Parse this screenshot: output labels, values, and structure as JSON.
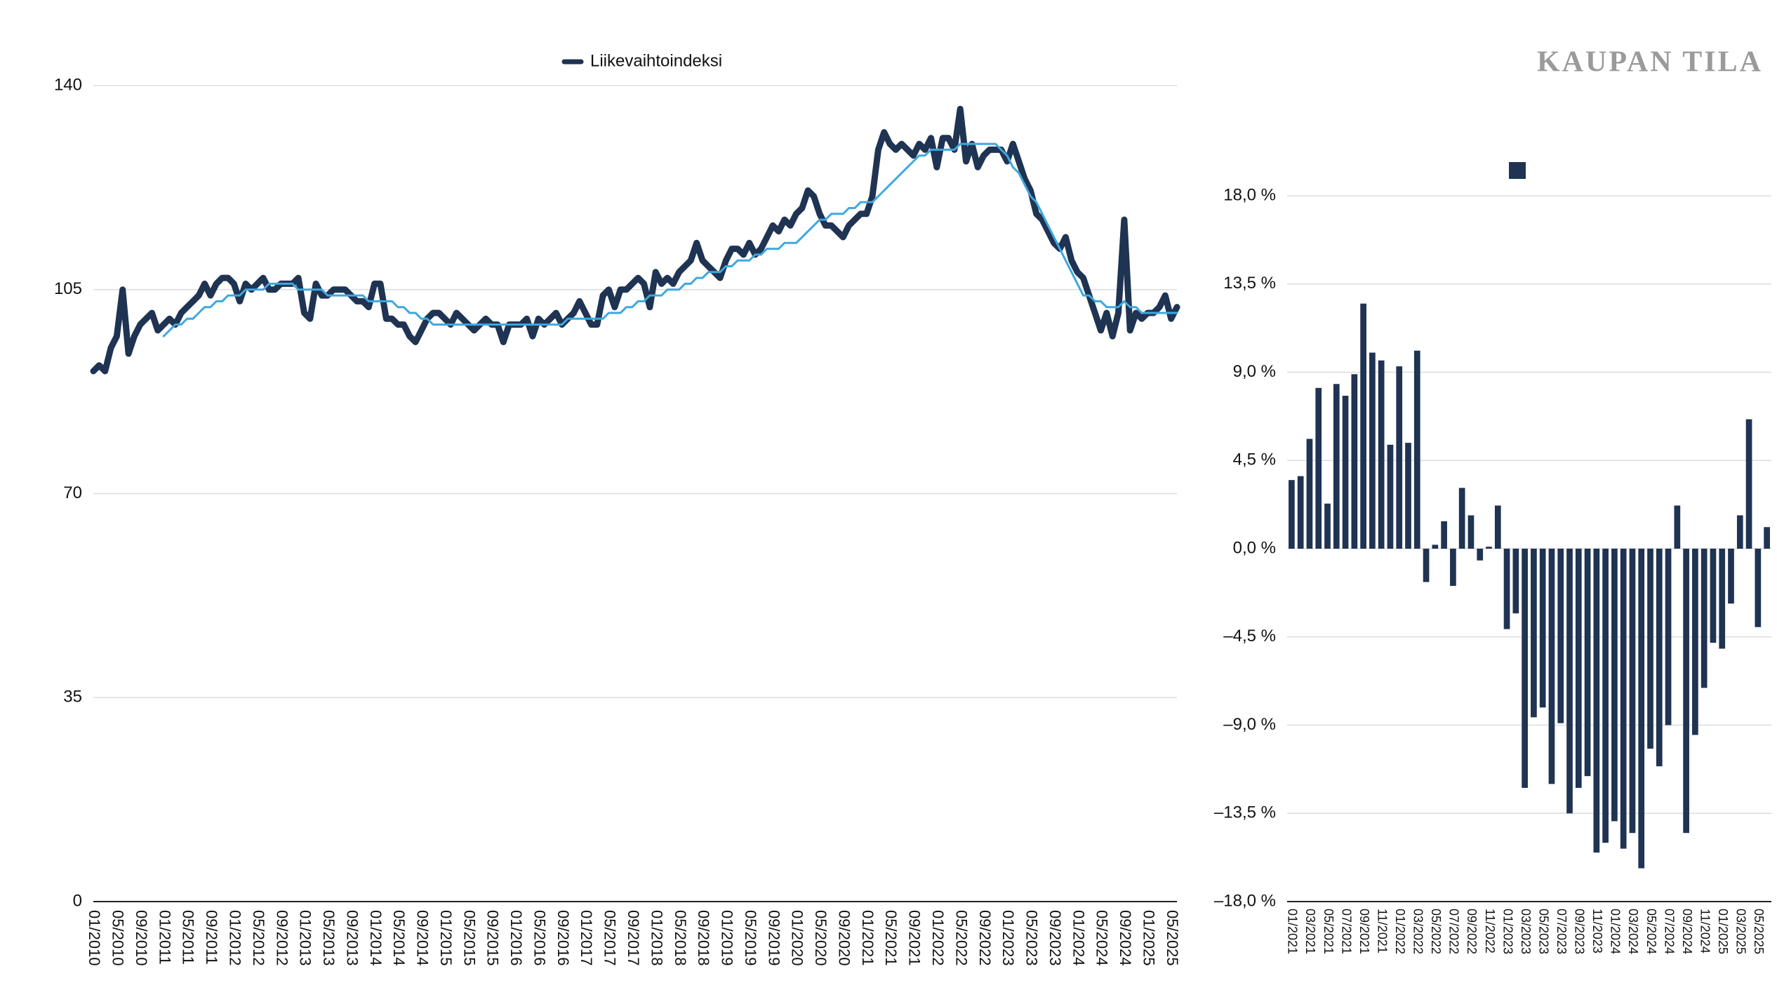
{
  "brand": "KAUPAN TILA",
  "chart_data": [
    {
      "type": "line",
      "categories": [
        "01/2010",
        null,
        null,
        null,
        "05/2010",
        null,
        null,
        null,
        "09/2010",
        null,
        null,
        null,
        "01/2011",
        null,
        null,
        null,
        "05/2011",
        null,
        null,
        null,
        "09/2011",
        null,
        null,
        null,
        "01/2012",
        null,
        null,
        null,
        "05/2012",
        null,
        null,
        null,
        "09/2012",
        null,
        null,
        null,
        "01/2013",
        null,
        null,
        null,
        "05/2013",
        null,
        null,
        null,
        "09/2013",
        null,
        null,
        null,
        "01/2014",
        null,
        null,
        null,
        "05/2014",
        null,
        null,
        null,
        "09/2014",
        null,
        null,
        null,
        "01/2015",
        null,
        null,
        null,
        "05/2015",
        null,
        null,
        null,
        "09/2015",
        null,
        null,
        null,
        "01/2016",
        null,
        null,
        null,
        "05/2016",
        null,
        null,
        null,
        "09/2016",
        null,
        null,
        null,
        "01/2017",
        null,
        null,
        null,
        "05/2017",
        null,
        null,
        null,
        "09/2017",
        null,
        null,
        null,
        "01/2018",
        null,
        null,
        null,
        "05/2018",
        null,
        null,
        null,
        "09/2018",
        null,
        null,
        null,
        "01/2019",
        null,
        null,
        null,
        "05/2019",
        null,
        null,
        null,
        "09/2019",
        null,
        null,
        null,
        "01/2020",
        null,
        null,
        null,
        "05/2020",
        null,
        null,
        null,
        "09/2020",
        null,
        null,
        null,
        "01/2021",
        null,
        null,
        null,
        "05/2021",
        null,
        null,
        null,
        "09/2021",
        null,
        null,
        null,
        "01/2022",
        null,
        null,
        null,
        "05/2022",
        null,
        null,
        null,
        "09/2022",
        null,
        null,
        null,
        "01/2023",
        null,
        null,
        null,
        "05/2023",
        null,
        null,
        null,
        "09/2023",
        null,
        null,
        null,
        "01/2024",
        null,
        null,
        null,
        "05/2024",
        null,
        null,
        null,
        "09/2024",
        null,
        null,
        null,
        "01/2025",
        null,
        null,
        null,
        "05/2025",
        null
      ],
      "series": [
        {
          "name": "Liikevaihtoindeksi",
          "color": "#1f3352",
          "values": [
            91,
            92,
            91,
            95,
            97,
            105,
            94,
            97,
            99,
            100,
            101,
            98,
            99,
            100,
            99,
            101,
            102,
            103,
            104,
            106,
            104,
            106,
            107,
            107,
            106,
            103,
            106,
            105,
            106,
            107,
            105,
            105,
            106,
            106,
            106,
            107,
            101,
            100,
            106,
            104,
            104,
            105,
            105,
            105,
            104,
            103,
            103,
            102,
            106,
            106,
            100,
            100,
            99,
            99,
            97,
            96,
            98,
            100,
            101,
            101,
            100,
            99,
            101,
            100,
            99,
            98,
            99,
            100,
            99,
            99,
            96,
            99,
            99,
            99,
            100,
            97,
            100,
            99,
            100,
            101,
            99,
            100,
            101,
            103,
            101,
            99,
            99,
            104,
            105,
            102,
            105,
            105,
            106,
            107,
            106,
            102,
            108,
            106,
            107,
            106,
            108,
            109,
            110,
            113,
            110,
            109,
            108,
            107,
            110,
            112,
            112,
            111,
            113,
            111,
            112,
            114,
            116,
            115,
            117,
            116,
            118,
            119,
            122,
            121,
            118,
            116,
            116,
            115,
            114,
            116,
            117,
            118,
            118,
            121,
            129,
            132,
            130,
            129,
            130,
            129,
            128,
            130,
            129,
            131,
            126,
            131,
            131,
            129,
            136,
            127,
            130,
            126,
            128,
            129,
            129,
            129,
            127,
            130,
            127,
            124,
            122,
            118,
            117,
            115,
            113,
            112,
            114,
            110,
            108,
            107,
            104,
            101,
            98,
            101,
            97,
            101,
            117,
            98,
            101,
            100,
            101,
            101,
            102,
            104,
            100,
            102
          ]
        },
        {
          "color": "#3ea8e0",
          "values": [
            null,
            null,
            null,
            null,
            null,
            null,
            null,
            null,
            null,
            null,
            null,
            null,
            97,
            98,
            99,
            99,
            100,
            100,
            101,
            102,
            102,
            103,
            103,
            104,
            104,
            104,
            105,
            105,
            105,
            105,
            106,
            106,
            106,
            106,
            106,
            105,
            105,
            105,
            105,
            105,
            104,
            104,
            104,
            104,
            104,
            104,
            104,
            103,
            103,
            103,
            103,
            103,
            102,
            102,
            101,
            101,
            100,
            100,
            99,
            99,
            99,
            99,
            99,
            99,
            99,
            99,
            99,
            99,
            99,
            99,
            99,
            99,
            99,
            99,
            99,
            99,
            99,
            99,
            99,
            99,
            99,
            100,
            100,
            100,
            100,
            100,
            100,
            100,
            101,
            101,
            101,
            102,
            102,
            103,
            103,
            104,
            104,
            104,
            105,
            105,
            105,
            106,
            106,
            107,
            107,
            108,
            108,
            108,
            109,
            109,
            110,
            110,
            110,
            111,
            111,
            112,
            112,
            112,
            113,
            113,
            113,
            114,
            115,
            116,
            117,
            117,
            118,
            118,
            118,
            119,
            119,
            120,
            120,
            120,
            121,
            122,
            123,
            124,
            125,
            126,
            127,
            128,
            128,
            129,
            129,
            129,
            129,
            129,
            130,
            130,
            130,
            130,
            130,
            130,
            130,
            129,
            128,
            126,
            125,
            123,
            121,
            120,
            118,
            116,
            114,
            112,
            110,
            108,
            106,
            104,
            104,
            103,
            103,
            102,
            102,
            102,
            103,
            102,
            102,
            101,
            101,
            101,
            101,
            101,
            101,
            101
          ]
        }
      ],
      "ylim": [
        0,
        140
      ],
      "yticks": [
        0,
        35,
        70,
        105,
        140
      ],
      "grid": true,
      "legend": "top"
    },
    {
      "type": "bar",
      "categories": [
        "01/2021",
        null,
        "03/2021",
        null,
        "05/2021",
        null,
        "07/2021",
        null,
        "09/2021",
        null,
        "11/2021",
        null,
        "01/2022",
        null,
        "03/2022",
        null,
        "05/2022",
        null,
        "07/2022",
        null,
        "09/2022",
        null,
        "11/2022",
        null,
        "01/2023",
        null,
        "03/2023",
        null,
        "05/2023",
        null,
        "07/2023",
        null,
        "09/2023",
        null,
        "11/2023",
        null,
        "01/2024",
        null,
        "03/2024",
        null,
        "05/2024",
        null,
        "07/2024",
        null,
        "09/2024",
        null,
        "11/2024",
        null,
        "01/2025",
        null,
        "03/2025",
        null,
        "05/2025",
        null
      ],
      "series": [
        {
          "color": "#1f3352",
          "values": [
            3.5,
            3.7,
            5.6,
            8.2,
            2.3,
            8.4,
            7.8,
            8.9,
            12.5,
            10.0,
            9.6,
            5.3,
            9.3,
            5.4,
            10.1,
            -1.7,
            0.2,
            1.4,
            -1.9,
            3.1,
            1.7,
            -0.6,
            0.1,
            2.2,
            -4.1,
            -3.3,
            -12.2,
            -8.6,
            -8.1,
            -12.0,
            -8.9,
            -13.5,
            -12.2,
            -11.6,
            -15.5,
            -15.0,
            -13.9,
            -15.3,
            -14.5,
            -16.3,
            -10.2,
            -11.1,
            -9.0,
            2.2,
            -14.5,
            -9.5,
            -7.1,
            -4.8,
            -5.1,
            -2.8,
            1.7,
            6.6,
            -4.0,
            1.1
          ]
        }
      ],
      "ylim": [
        -18,
        18
      ],
      "yticks": [
        {
          "value": -18,
          "label": "–18,0 %"
        },
        {
          "value": -13.5,
          "label": "–13,5 %"
        },
        {
          "value": -9,
          "label": "–9,0 %"
        },
        {
          "value": -4.5,
          "label": "–4,5 %"
        },
        {
          "value": 0,
          "label": "0,0 %"
        },
        {
          "value": 4.5,
          "label": "4,5 %"
        },
        {
          "value": 9,
          "label": "9,0 %"
        },
        {
          "value": 13.5,
          "label": "13,5 %"
        },
        {
          "value": 18,
          "label": "18,0 %"
        }
      ],
      "grid": true,
      "legend": "top"
    }
  ]
}
